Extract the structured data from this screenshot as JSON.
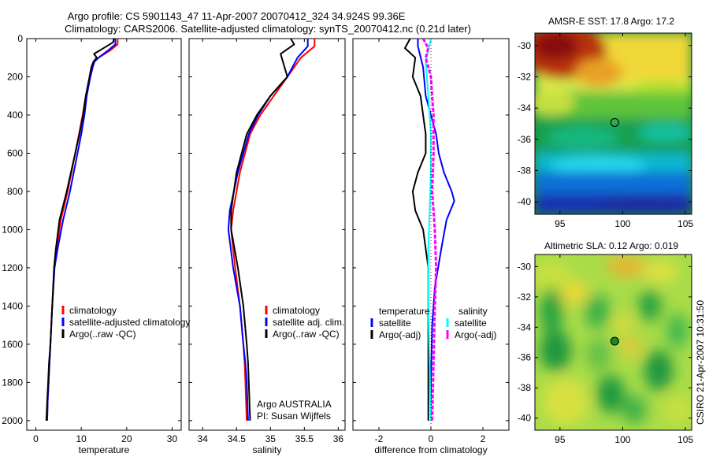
{
  "figure": {
    "title_line1": "Argo profile: CS 5901143_47 11-Apr-2007 20070412_324 34.924S 99.36E",
    "title_line2": "Climatology: CARS2006. Satellite-adjusted climatology: synTS_20070412.nc (0.21d later)",
    "credit_argo": "Argo AUSTRALIA",
    "credit_pi": "PI: Susan Wijffels",
    "side_label": "CSIRO 21-Apr-2007 10:31:50"
  },
  "chart_data": [
    {
      "id": "temperature",
      "type": "line",
      "xlabel": "temperature",
      "ylabel": "",
      "xlim": [
        -2,
        32
      ],
      "ylim": [
        2050,
        0
      ],
      "xticks": [
        0,
        10,
        20,
        30
      ],
      "yticks": [
        0,
        200,
        400,
        600,
        800,
        1000,
        1200,
        1400,
        1600,
        1800,
        2000
      ],
      "legend": "bottom-right",
      "series": [
        {
          "name": "climatology",
          "color": "#ff0000",
          "x": [
            18.0,
            18.0,
            16.5,
            13.8,
            12.9,
            12.5,
            12.0,
            11.0,
            10.3,
            9.5,
            7.0,
            5.5,
            4.6,
            4.1,
            3.6,
            3.2,
            3.0,
            2.8,
            2.6,
            2.5
          ],
          "y": [
            0,
            30,
            60,
            100,
            120,
            150,
            200,
            300,
            400,
            500,
            800,
            950,
            1100,
            1200,
            1400,
            1600,
            1700,
            1800,
            1900,
            2000
          ]
        },
        {
          "name": "satellite-adjusted climatology",
          "color": "#0000ff",
          "x": [
            17.5,
            17.5,
            16.0,
            13.8,
            12.9,
            12.5,
            12.0,
            11.2,
            10.7,
            10.0,
            7.5,
            6.0,
            4.8,
            4.1,
            3.6,
            3.2,
            3.0,
            2.8,
            2.6,
            2.5
          ],
          "y": [
            0,
            30,
            60,
            100,
            120,
            150,
            200,
            300,
            400,
            500,
            800,
            950,
            1100,
            1200,
            1400,
            1600,
            1700,
            1800,
            1900,
            2000
          ]
        },
        {
          "name": "Argo(..raw -QC)",
          "color": "#000000",
          "x": [
            17.2,
            17.0,
            12.8,
            13.4,
            12.7,
            12.2,
            11.8,
            11.0,
            10.4,
            9.6,
            6.8,
            5.2,
            4.4,
            4.0,
            3.6,
            3.2,
            2.9,
            2.7,
            2.5,
            2.3
          ],
          "y": [
            0,
            20,
            80,
            100,
            120,
            150,
            200,
            300,
            400,
            500,
            800,
            950,
            1100,
            1200,
            1400,
            1600,
            1700,
            1800,
            1900,
            2000
          ]
        }
      ]
    },
    {
      "id": "salinity",
      "type": "line",
      "xlabel": "salinity",
      "ylabel": "",
      "xlim": [
        33.8,
        36.1
      ],
      "ylim": [
        2050,
        0
      ],
      "xticks": [
        34,
        34.5,
        35,
        35.5,
        36
      ],
      "yticks": [],
      "legend": "bottom-right",
      "series": [
        {
          "name": "climatology",
          "color": "#ff0000",
          "x": [
            35.65,
            35.65,
            35.45,
            35.25,
            35.05,
            34.85,
            34.7,
            34.55,
            34.45,
            34.42,
            34.48,
            34.55,
            34.6,
            34.62,
            34.63,
            34.65
          ],
          "y": [
            0,
            40,
            100,
            200,
            300,
            400,
            500,
            700,
            900,
            1000,
            1200,
            1400,
            1600,
            1700,
            1800,
            2000
          ]
        },
        {
          "name": "satellite adj. clim.",
          "color": "#0000ff",
          "x": [
            35.55,
            35.55,
            35.4,
            35.25,
            35.0,
            34.82,
            34.68,
            34.52,
            34.4,
            34.38,
            34.45,
            34.55,
            34.6,
            34.63,
            34.65,
            34.67
          ],
          "y": [
            0,
            40,
            100,
            200,
            300,
            400,
            500,
            700,
            900,
            1000,
            1200,
            1400,
            1600,
            1700,
            1800,
            2000
          ]
        },
        {
          "name": "Argo(..raw -QC)",
          "color": "#000000",
          "x": [
            35.3,
            35.35,
            35.15,
            35.25,
            35.0,
            34.8,
            34.65,
            34.5,
            34.42,
            34.42,
            34.52,
            34.6,
            34.65,
            34.67,
            34.68,
            34.7
          ],
          "y": [
            0,
            30,
            80,
            200,
            300,
            400,
            500,
            700,
            900,
            1000,
            1200,
            1400,
            1600,
            1700,
            1800,
            2000
          ]
        }
      ]
    },
    {
      "id": "difference",
      "type": "line",
      "xlabel": "difference from climatology",
      "ylabel": "",
      "xlim": [
        -3,
        3
      ],
      "ylim": [
        2050,
        0
      ],
      "xticks": [
        -2,
        0,
        2
      ],
      "yticks": [],
      "legend": "bottom-right",
      "legend_headers": [
        "temperature",
        "salinity"
      ],
      "series": [
        {
          "name": "satellite",
          "group": "temperature",
          "color": "#0000ff",
          "x": [
            -0.5,
            -0.5,
            -0.3,
            -0.2,
            0.0,
            0.2,
            0.3,
            0.5,
            0.8,
            0.9,
            0.6,
            0.4,
            0.15,
            0.05,
            0.0,
            0.0
          ],
          "y": [
            0,
            40,
            150,
            300,
            400,
            500,
            600,
            700,
            800,
            850,
            950,
            1100,
            1300,
            1500,
            1800,
            2000
          ]
        },
        {
          "name": "Argo(-adj)",
          "group": "temperature",
          "color": "#000000",
          "x": [
            -0.8,
            -1.0,
            -0.6,
            -0.7,
            -0.4,
            -0.3,
            -0.2,
            -0.2,
            -0.5,
            -0.7,
            -0.6,
            -0.3,
            -0.1,
            -0.1,
            -0.1
          ],
          "y": [
            0,
            50,
            100,
            200,
            300,
            400,
            500,
            600,
            700,
            800,
            900,
            1000,
            1200,
            1500,
            2000
          ]
        },
        {
          "name": "satellite",
          "group": "salinity",
          "color": "#00ffff",
          "x": [
            0.0,
            -0.1,
            -0.2,
            -0.15,
            -0.1,
            -0.05,
            0.0,
            0.0,
            -0.05,
            -0.1,
            -0.1,
            -0.05,
            0.0
          ],
          "y": [
            0,
            60,
            120,
            200,
            300,
            400,
            500,
            700,
            900,
            1100,
            1400,
            1700,
            2000
          ]
        },
        {
          "name": "Argo(-adj)",
          "group": "salinity",
          "color": "#ff00ff",
          "x": [
            -0.3,
            -0.1,
            -0.2,
            0.0,
            0.05,
            0.1,
            0.1,
            0.05,
            0.15,
            0.2,
            0.15,
            0.1,
            0.05
          ],
          "y": [
            0,
            50,
            100,
            200,
            300,
            400,
            600,
            800,
            1000,
            1200,
            1400,
            1700,
            2000
          ]
        }
      ]
    },
    {
      "id": "sst_map",
      "type": "heatmap",
      "title": "AMSR-E SST: 17.8 Argo: 17.2",
      "xlim": [
        93,
        105.5
      ],
      "ylim": [
        -40.8,
        -29.2
      ],
      "xticks": [
        95,
        100,
        105
      ],
      "yticks": [
        -30,
        -32,
        -34,
        -36,
        -38,
        -40
      ],
      "marker": {
        "lon": 99.36,
        "lat": -34.924,
        "color": "none"
      }
    },
    {
      "id": "sla_map",
      "type": "heatmap",
      "title": "Altimetric SLA: 0.12 Argo: 0.019",
      "xlim": [
        93,
        105.5
      ],
      "ylim": [
        -40.8,
        -29.2
      ],
      "xticks": [
        95,
        100,
        105
      ],
      "yticks": [
        -30,
        -32,
        -34,
        -36,
        -38,
        -40
      ],
      "marker": {
        "lon": 99.36,
        "lat": -34.924,
        "color": "#1a8a1a"
      }
    }
  ]
}
